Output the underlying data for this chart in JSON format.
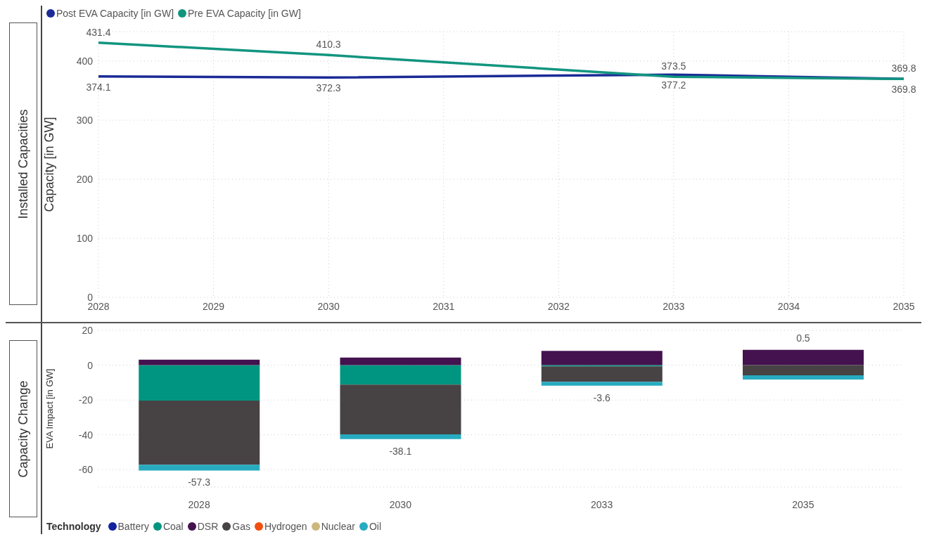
{
  "chart_data": [
    {
      "type": "line",
      "title": "Installed Capacities",
      "ylabel": "Capacity [in GW]",
      "x": [
        2028,
        2030,
        2033,
        2035
      ],
      "series": [
        {
          "name": "Post EVA Capacity [in GW]",
          "color": "#1a2a96",
          "values": [
            374.1,
            372.3,
            377.2,
            369.8
          ]
        },
        {
          "name": "Pre EVA Capacity [in GW]",
          "color": "#12957f",
          "values": [
            431.4,
            410.3,
            373.5,
            369.8
          ]
        }
      ],
      "xlim": [
        2028,
        2035
      ],
      "xticks": [
        2028,
        2029,
        2030,
        2031,
        2032,
        2033,
        2034,
        2035
      ],
      "ylim": [
        0,
        450
      ],
      "yticks": [
        0,
        100,
        200,
        300,
        400
      ],
      "grid": true,
      "legend": "top left",
      "data_labels": true,
      "marker": "none"
    },
    {
      "type": "bar",
      "title": "Capacity Change",
      "ylabel": "EVA Impact [in GW]",
      "legend_title": "Technology",
      "categories": [
        "2028",
        "2030",
        "2033",
        "2035"
      ],
      "stacked": true,
      "series": [
        {
          "name": "Battery",
          "color": "#12239e",
          "values": [
            null,
            null,
            null,
            null
          ]
        },
        {
          "name": "Coal",
          "color": "#009580",
          "values": [
            -20.4,
            -11.2,
            -0.7,
            null
          ]
        },
        {
          "name": "DSR",
          "color": "#43124f",
          "values": [
            3.2,
            4.4,
            8.2,
            8.8
          ]
        },
        {
          "name": "Gas",
          "color": "#474344",
          "values": [
            -36.8,
            -28.5,
            -8.9,
            -5.8
          ]
        },
        {
          "name": "Hydrogen",
          "color": "#f24f0f",
          "values": [
            null,
            null,
            null,
            null
          ]
        },
        {
          "name": "Nuclear",
          "color": "#cdb67e",
          "values": [
            null,
            null,
            null,
            null
          ]
        },
        {
          "name": "Oil",
          "color": "#27abc0",
          "values": [
            -3.3,
            -2.8,
            -2.2,
            -2.5
          ]
        }
      ],
      "totals": [
        "-57.3",
        "-38.1",
        "-3.6",
        "0.5"
      ],
      "ylim": [
        -70,
        20
      ],
      "yticks": [
        -60,
        -40,
        -20,
        0,
        20
      ],
      "grid": "y",
      "legend": "bottom left"
    }
  ]
}
